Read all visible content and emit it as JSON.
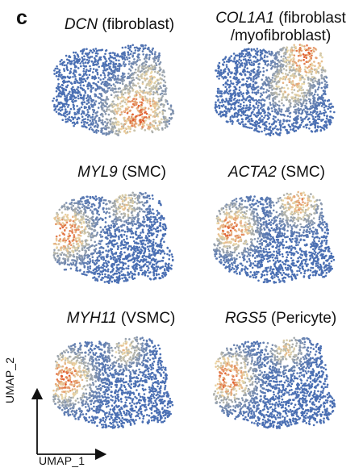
{
  "panel_label": "c",
  "colors": {
    "low": "#4a6fb3",
    "mid": "#ead8a8",
    "high": "#e05a2b",
    "axis": "#111111"
  },
  "axes": {
    "x_label": "UMAP_1",
    "y_label": "UMAP_2"
  },
  "chart_data": [
    {
      "type": "scatter",
      "gene": "DCN",
      "annotation": "(fibroblast)",
      "hotspot": "bottom-right",
      "grid": false
    },
    {
      "type": "scatter",
      "gene": "COL1A1",
      "annotation": "(fibroblast",
      "annotation_line2": "/myofibroblast)",
      "hotspot": "top-right",
      "grid": false
    },
    {
      "type": "scatter",
      "gene": "MYL9",
      "annotation": "(SMC)",
      "hotspot": "left",
      "grid": false
    },
    {
      "type": "scatter",
      "gene": "ACTA2",
      "annotation": "(SMC)",
      "hotspot": "left-and-top",
      "grid": false
    },
    {
      "type": "scatter",
      "gene": "MYH11",
      "annotation": "(VSMC)",
      "hotspot": "left",
      "grid": false
    },
    {
      "type": "scatter",
      "gene": "RGS5",
      "annotation": "(Pericyte)",
      "hotspot": "left",
      "grid": false
    }
  ]
}
